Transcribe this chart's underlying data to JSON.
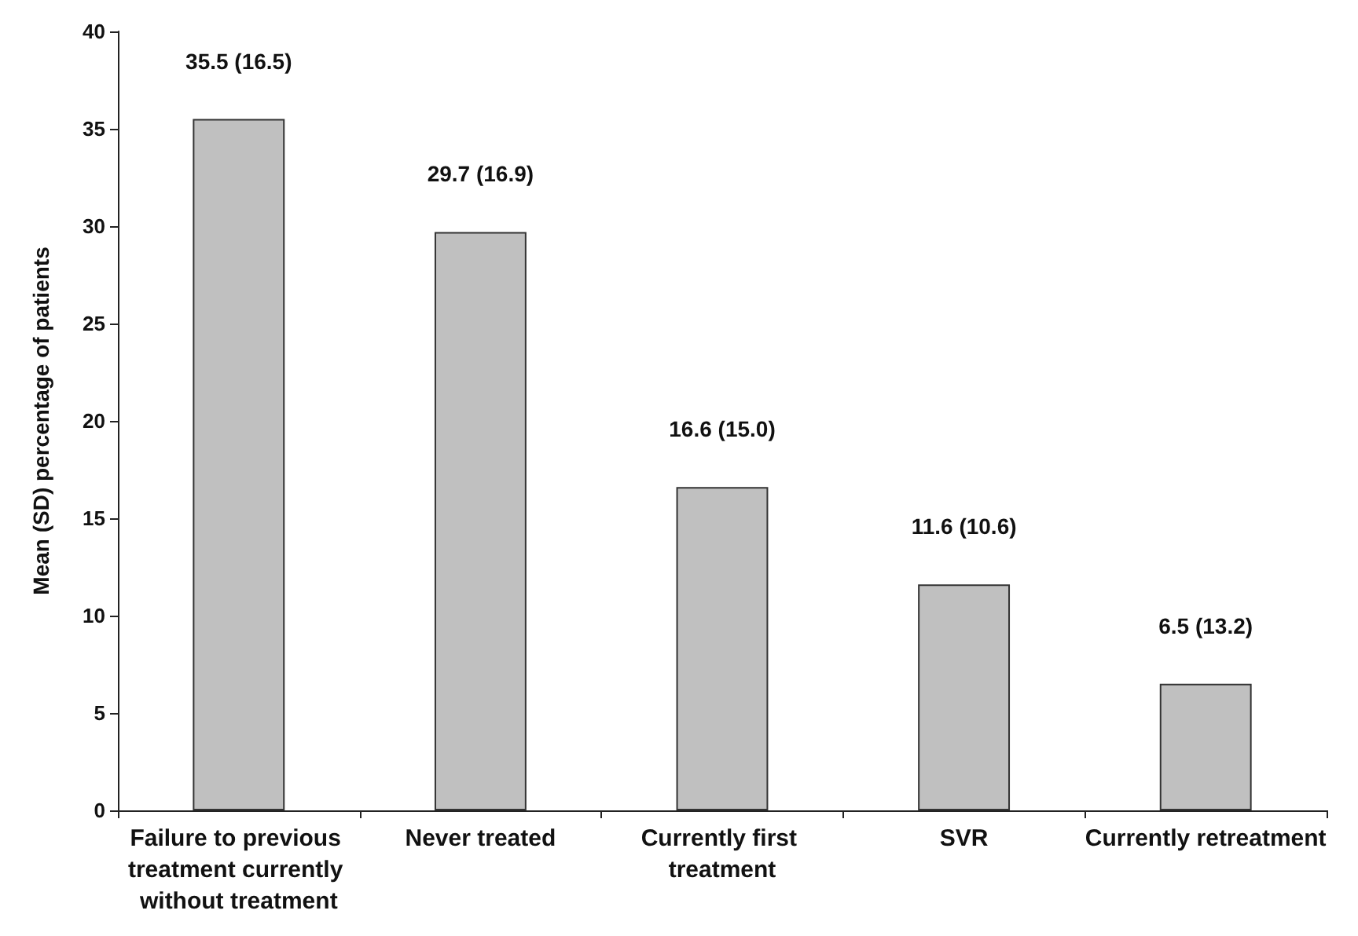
{
  "chart_data": {
    "type": "bar",
    "ylabel": "Mean (SD) percentage of patients",
    "categories": [
      "Failure to previous treatment currently without treatment",
      "Never treated",
      "Currently first treatment",
      "SVR",
      "Currently retreatment"
    ],
    "values": [
      35.5,
      29.7,
      16.6,
      11.6,
      6.5
    ],
    "value_labels": [
      "35.5 (16.5)",
      "29.7 (16.9)",
      "16.6 (15.0)",
      "11.6 (10.6)",
      "6.5 (13.2)"
    ],
    "color": "#c0c0c0",
    "ylim": [
      0,
      40
    ],
    "yticks": [
      0,
      5,
      10,
      15,
      20,
      25,
      30,
      35,
      40
    ],
    "grid": false
  }
}
